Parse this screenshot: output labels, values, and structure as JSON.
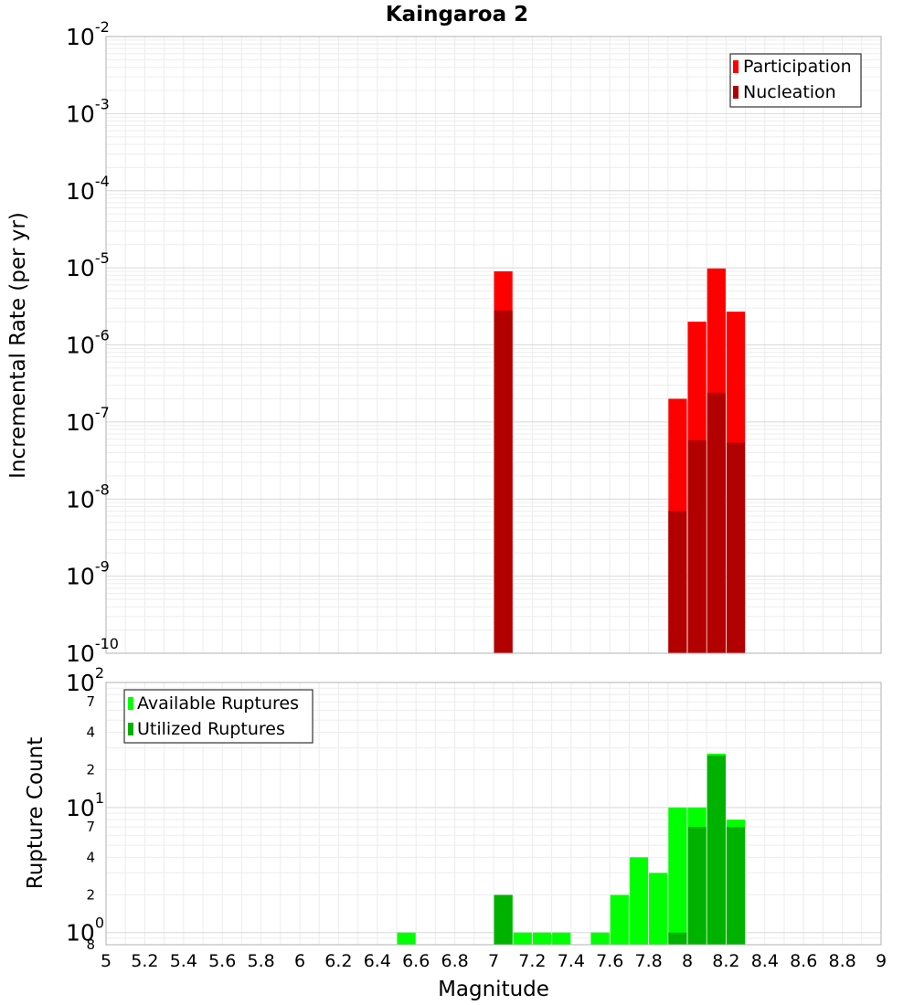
{
  "chart_data": [
    {
      "type": "bar",
      "title": "Kaingaroa 2",
      "xlabel": "",
      "ylabel": "Incremental Rate (per yr)",
      "y_scale": "log",
      "ylim": [
        1e-10,
        0.01
      ],
      "xlim": [
        5,
        9
      ],
      "bin_width": 0.1,
      "grid": true,
      "legend_position": "top-right",
      "series": [
        {
          "name": "Participation",
          "color": "#ff0000",
          "x": [
            7.05,
            7.95,
            8.05,
            8.15,
            8.25
          ],
          "values": [
            9e-06,
            2e-07,
            2e-06,
            9.8e-06,
            2.7e-06
          ]
        },
        {
          "name": "Nucleation",
          "color": "#b20000",
          "x": [
            7.05,
            7.95,
            8.05,
            8.15,
            8.25
          ],
          "values": [
            2.8e-06,
            7e-09,
            5.8e-08,
            2.4e-07,
            5.4e-08
          ]
        }
      ],
      "y_tick_labels": [
        {
          "base": "10",
          "exp": "-10",
          "value": 1e-10
        },
        {
          "base": "10",
          "exp": "-9",
          "value": 1e-09
        },
        {
          "base": "10",
          "exp": "-8",
          "value": 1e-08
        },
        {
          "base": "10",
          "exp": "-7",
          "value": 1e-07
        },
        {
          "base": "10",
          "exp": "-6",
          "value": 1e-06
        },
        {
          "base": "10",
          "exp": "-5",
          "value": 1e-05
        },
        {
          "base": "10",
          "exp": "-4",
          "value": 0.0001
        },
        {
          "base": "10",
          "exp": "-3",
          "value": 0.001
        },
        {
          "base": "10",
          "exp": "-2",
          "value": 0.01
        }
      ]
    },
    {
      "type": "bar",
      "title": "",
      "xlabel": "Magnitude",
      "ylabel": "Rupture Count",
      "y_scale": "log",
      "ylim": [
        0.8,
        100
      ],
      "xlim": [
        5,
        9
      ],
      "bin_width": 0.1,
      "grid": true,
      "legend_position": "top-left",
      "series": [
        {
          "name": "Available Ruptures",
          "color": "#00ff00",
          "x": [
            6.55,
            7.05,
            7.15,
            7.25,
            7.35,
            7.55,
            7.65,
            7.75,
            7.85,
            7.95,
            8.05,
            8.15,
            8.25
          ],
          "values": [
            1,
            2,
            1,
            1,
            1,
            1,
            2,
            4,
            3,
            10,
            10,
            27,
            8
          ]
        },
        {
          "name": "Utilized Ruptures",
          "color": "#00b200",
          "x": [
            7.05,
            7.95,
            8.05,
            8.15,
            8.25
          ],
          "values": [
            2,
            1,
            7,
            26,
            7
          ]
        }
      ],
      "y_tick_labels": [
        {
          "base": "10",
          "exp": "0",
          "value": 1
        },
        {
          "base": "10",
          "exp": "1",
          "value": 10
        },
        {
          "base": "10",
          "exp": "2",
          "value": 100
        }
      ],
      "y_minor_labels": [
        {
          "label": "8",
          "value": 0.8
        },
        {
          "label": "2",
          "value": 2
        },
        {
          "label": "4",
          "value": 4
        },
        {
          "label": "7",
          "value": 7
        },
        {
          "label": "2",
          "value": 20
        },
        {
          "label": "4",
          "value": 40
        },
        {
          "label": "7",
          "value": 70
        }
      ],
      "x_ticks": [
        5,
        5.2,
        5.4,
        5.6,
        5.8,
        6,
        6.2,
        6.4,
        6.6,
        6.8,
        7,
        7.2,
        7.4,
        7.6,
        7.8,
        8,
        8.2,
        8.4,
        8.6,
        8.8,
        9
      ],
      "x_tick_labels": [
        "5",
        "5.2",
        "5.4",
        "5.6",
        "5.8",
        "6",
        "6.2",
        "6.4",
        "6.6",
        "6.8",
        "7",
        "7.2",
        "7.4",
        "7.6",
        "7.8",
        "8",
        "8.2",
        "8.4",
        "8.6",
        "8.8",
        "9"
      ]
    }
  ]
}
